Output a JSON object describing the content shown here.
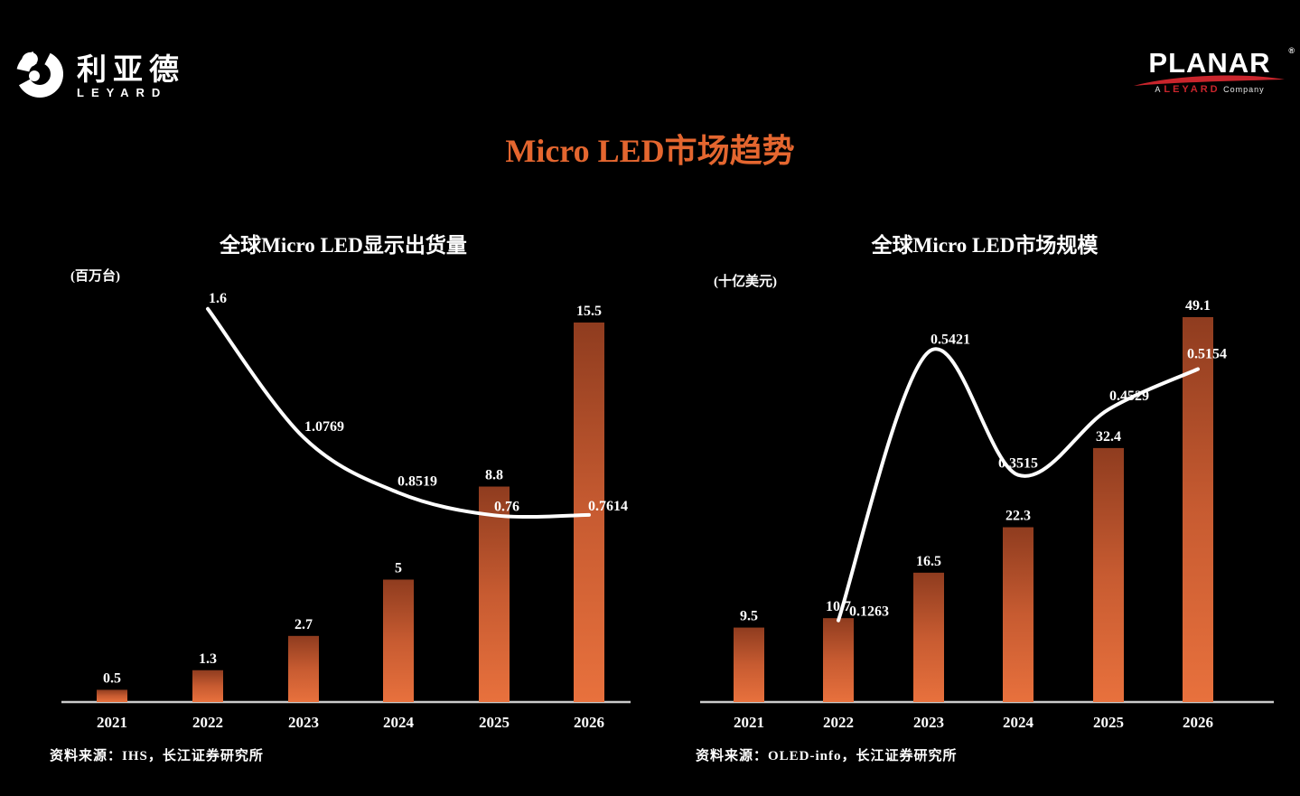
{
  "page": {
    "background": "#000000"
  },
  "branding": {
    "leyard": {
      "cn": "利亚德",
      "en": "LEYARD"
    },
    "planar": {
      "wordmark": "PLANAR",
      "registered": "®",
      "tagline": {
        "prefix": "A",
        "brand": "LEYARD",
        "suffix": "Company"
      },
      "accent_color": "#C9252C"
    }
  },
  "title": {
    "text": "Micro LED市场趋势",
    "color": "#E4662F"
  },
  "chart_data": [
    {
      "type": "bar+line",
      "title": "全球Micro LED显示出货量",
      "unit_label": "(百万台)",
      "categories": [
        "2021",
        "2022",
        "2023",
        "2024",
        "2025",
        "2026"
      ],
      "series": [
        {
          "name": "shipments-bars",
          "type": "bar",
          "values": [
            0.5,
            1.3,
            2.7,
            5,
            8.8,
            15.5
          ],
          "labels": [
            "0.5",
            "1.3",
            "2.7",
            "5",
            "8.8",
            "15.5"
          ]
        },
        {
          "name": "trend-line",
          "type": "line",
          "x": [
            "2022",
            "2023",
            "2024",
            "2025",
            "2026"
          ],
          "values": [
            1.6,
            1.0769,
            0.8519,
            0.76,
            0.7614
          ],
          "labels": [
            "1.6",
            "1.0769",
            "0.8519",
            "0.76",
            "0.7614"
          ]
        }
      ],
      "source": "资料来源：IHS，长江证券研究所",
      "colors": {
        "bar_gradient_top": "#8F3C1F",
        "bar_gradient_mid": "#C75B31",
        "bar_gradient_bottom": "#E8713D",
        "line": "#FFFFFF",
        "axis": "#CBCBCB",
        "text": "#FFFFFF"
      },
      "layout_hints": {
        "bar_ylim": [
          0,
          16
        ],
        "line_ylim": [
          0,
          1.75
        ],
        "value_axes_hidden": true,
        "grid": false,
        "legend": "none"
      }
    },
    {
      "type": "bar+line",
      "title": "全球Micro LED市场规模",
      "unit_label": "(十亿美元)",
      "categories": [
        "2021",
        "2022",
        "2023",
        "2024",
        "2025",
        "2026"
      ],
      "series": [
        {
          "name": "market-size-bars",
          "type": "bar",
          "values": [
            9.5,
            10.7,
            16.5,
            22.3,
            32.4,
            49.1
          ],
          "labels": [
            "9.5",
            "10.7",
            "16.5",
            "22.3",
            "32.4",
            "49.1"
          ]
        },
        {
          "name": "trend-line",
          "type": "line",
          "x": [
            "2022",
            "2023",
            "2024",
            "2025",
            "2026"
          ],
          "values": [
            0.1263,
            0.5421,
            0.3515,
            0.4529,
            0.5154
          ],
          "labels": [
            "0.1263",
            "0.5421",
            "0.3515",
            "0.4529",
            "0.5154"
          ]
        }
      ],
      "source": "资料来源：OLED-info，长江证券研究所",
      "colors": {
        "bar_gradient_top": "#8F3C1F",
        "bar_gradient_mid": "#C75B31",
        "bar_gradient_bottom": "#E8713D",
        "line": "#FFFFFF",
        "axis": "#CBCBCB",
        "text": "#FFFFFF"
      },
      "layout_hints": {
        "bar_ylim": [
          0,
          50
        ],
        "line_ylim": [
          0,
          0.6
        ],
        "value_axes_hidden": true,
        "grid": false,
        "legend": "none"
      }
    }
  ]
}
